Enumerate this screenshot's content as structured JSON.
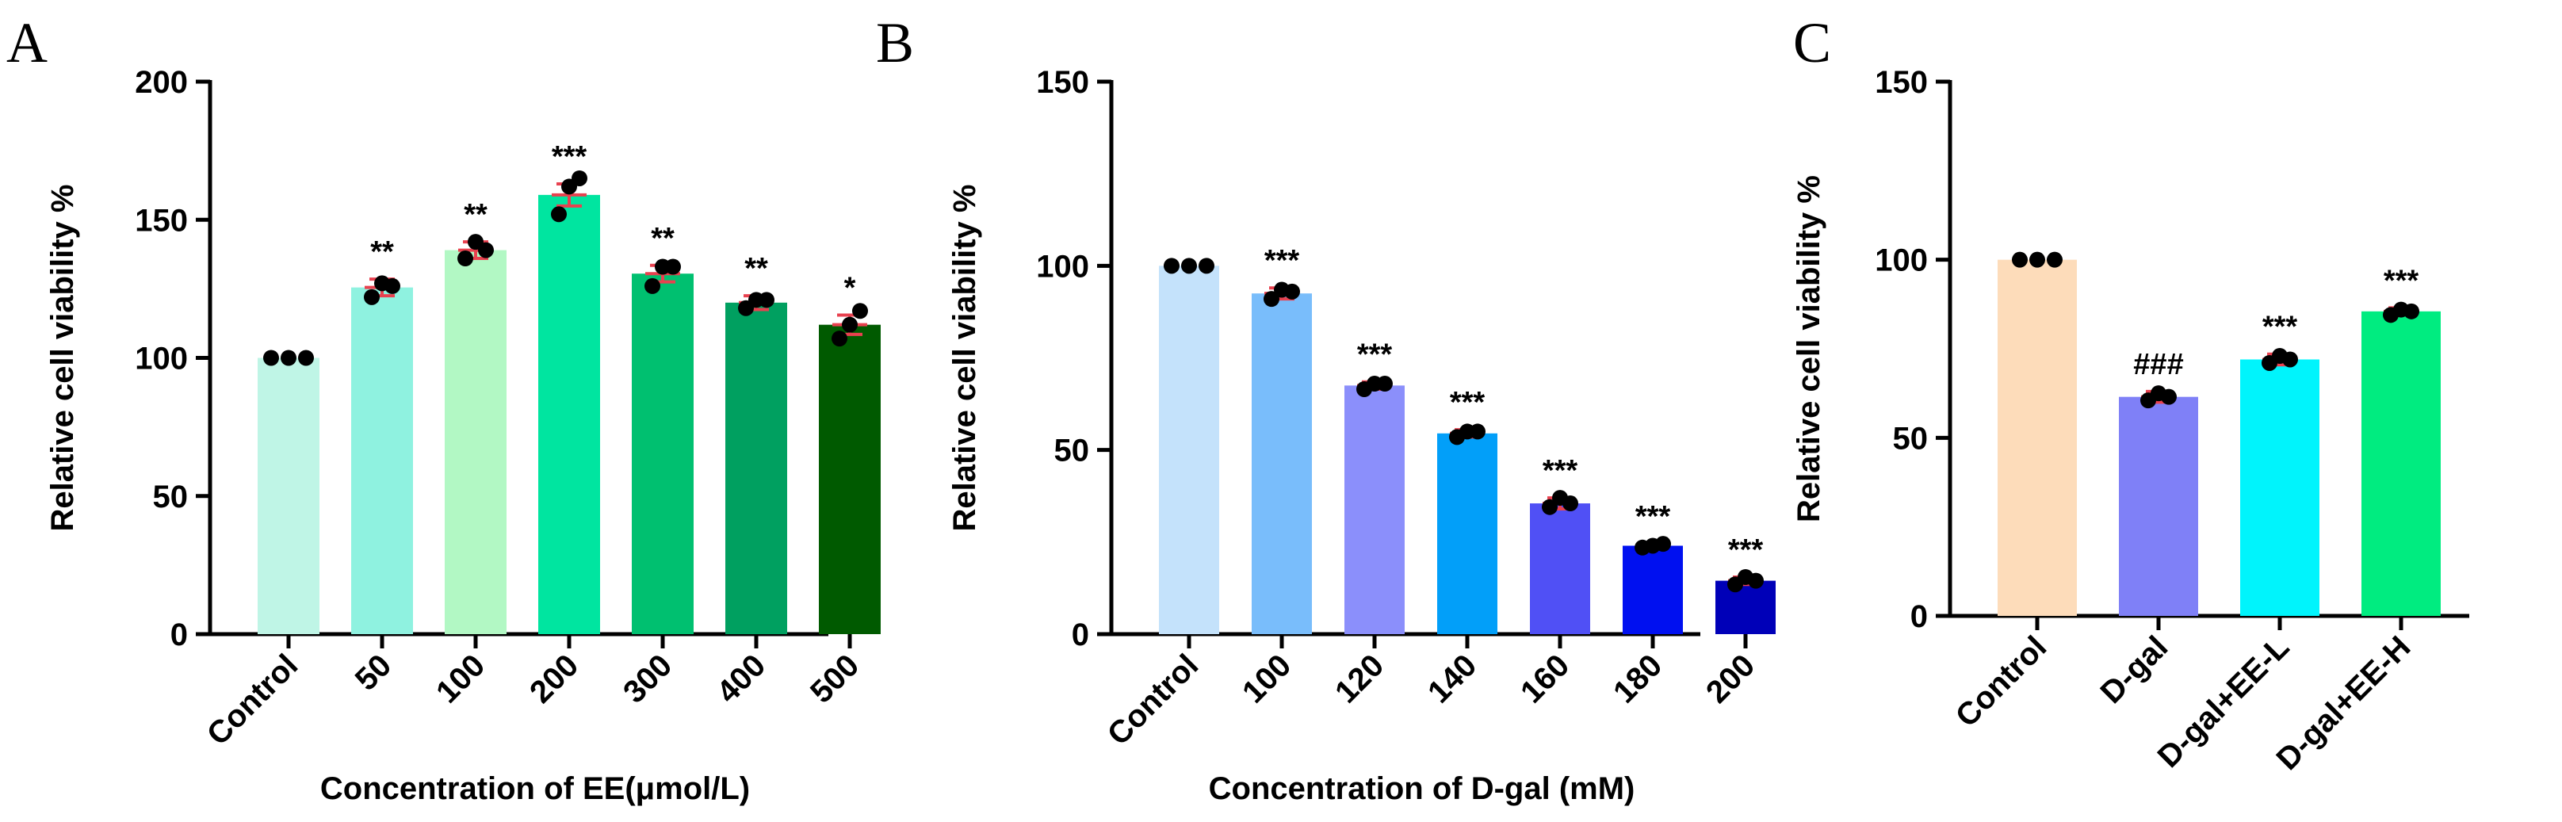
{
  "chart_data": [
    {
      "panel": "A",
      "type": "bar",
      "title": "",
      "xlabel": "Concentration of EE(μmol/L)",
      "ylabel": "Relative cell viability %",
      "ylim": [
        0,
        200
      ],
      "yticks": [
        0,
        50,
        100,
        150,
        200
      ],
      "categories": [
        "Control",
        "50",
        "100",
        "200",
        "300",
        "400",
        "500"
      ],
      "values": [
        100,
        125.5,
        139,
        159,
        130.5,
        120,
        112
      ],
      "errors": [
        0,
        3,
        3,
        4,
        3,
        2.5,
        3.5
      ],
      "points": [
        [
          100,
          100,
          100
        ],
        [
          122,
          127,
          126
        ],
        [
          136,
          142,
          139
        ],
        [
          152,
          162,
          165
        ],
        [
          126,
          133,
          133
        ],
        [
          118,
          121,
          121
        ],
        [
          107,
          112,
          117
        ]
      ],
      "significance": [
        "",
        "**",
        "**",
        "***",
        "**",
        "**",
        "*"
      ],
      "colors": [
        "#bff5e6",
        "#8ff2e0",
        "#b2f8c4",
        "#00e5a0",
        "#00c070",
        "#00a060",
        "#005a00"
      ],
      "grid": false
    },
    {
      "panel": "B",
      "type": "bar",
      "title": "",
      "xlabel": "Concentration of D-gal (mM)",
      "ylabel": "Relative cell viability %",
      "ylim": [
        0,
        150
      ],
      "yticks": [
        0,
        50,
        100,
        150
      ],
      "categories": [
        "Control",
        "100",
        "120",
        "140",
        "160",
        "180",
        "200"
      ],
      "values": [
        100,
        92.5,
        67.5,
        54.5,
        35.5,
        24,
        14.5
      ],
      "errors": [
        0,
        1.5,
        1,
        1,
        1.5,
        0.5,
        1
      ],
      "points": [
        [
          100,
          100,
          100
        ],
        [
          91,
          93.5,
          93
        ],
        [
          66.5,
          68,
          68
        ],
        [
          53.5,
          55,
          55
        ],
        [
          34.5,
          37,
          35.5
        ],
        [
          23.5,
          24,
          24.5
        ],
        [
          13.5,
          15.5,
          14.5
        ]
      ],
      "significance": [
        "",
        "***",
        "***",
        "***",
        "***",
        "***",
        "***"
      ],
      "colors": [
        "#c4e2fb",
        "#79bdfb",
        "#8b8ffb",
        "#029ff9",
        "#5050f5",
        "#0010f0",
        "#0000b8"
      ],
      "grid": false
    },
    {
      "panel": "C",
      "type": "bar",
      "title": "",
      "xlabel": "",
      "ylabel": "Relative cell viability %",
      "ylim": [
        0,
        150
      ],
      "yticks": [
        0,
        50,
        100,
        150
      ],
      "categories": [
        "Control",
        "D-gal",
        "D-gal+EE-L",
        "D-gal+EE-H"
      ],
      "values": [
        100,
        61.5,
        72,
        85.5
      ],
      "errors": [
        0,
        1.5,
        1.5,
        1
      ],
      "points": [
        [
          100,
          100,
          100
        ],
        [
          60.5,
          62.5,
          61.5
        ],
        [
          71,
          73,
          72
        ],
        [
          84.5,
          86,
          85.5
        ]
      ],
      "significance": [
        "",
        "###",
        "***",
        "***"
      ],
      "colors": [
        "#fddcba",
        "#7f80f7",
        "#00f4fc",
        "#00ec80"
      ],
      "grid": false
    }
  ]
}
